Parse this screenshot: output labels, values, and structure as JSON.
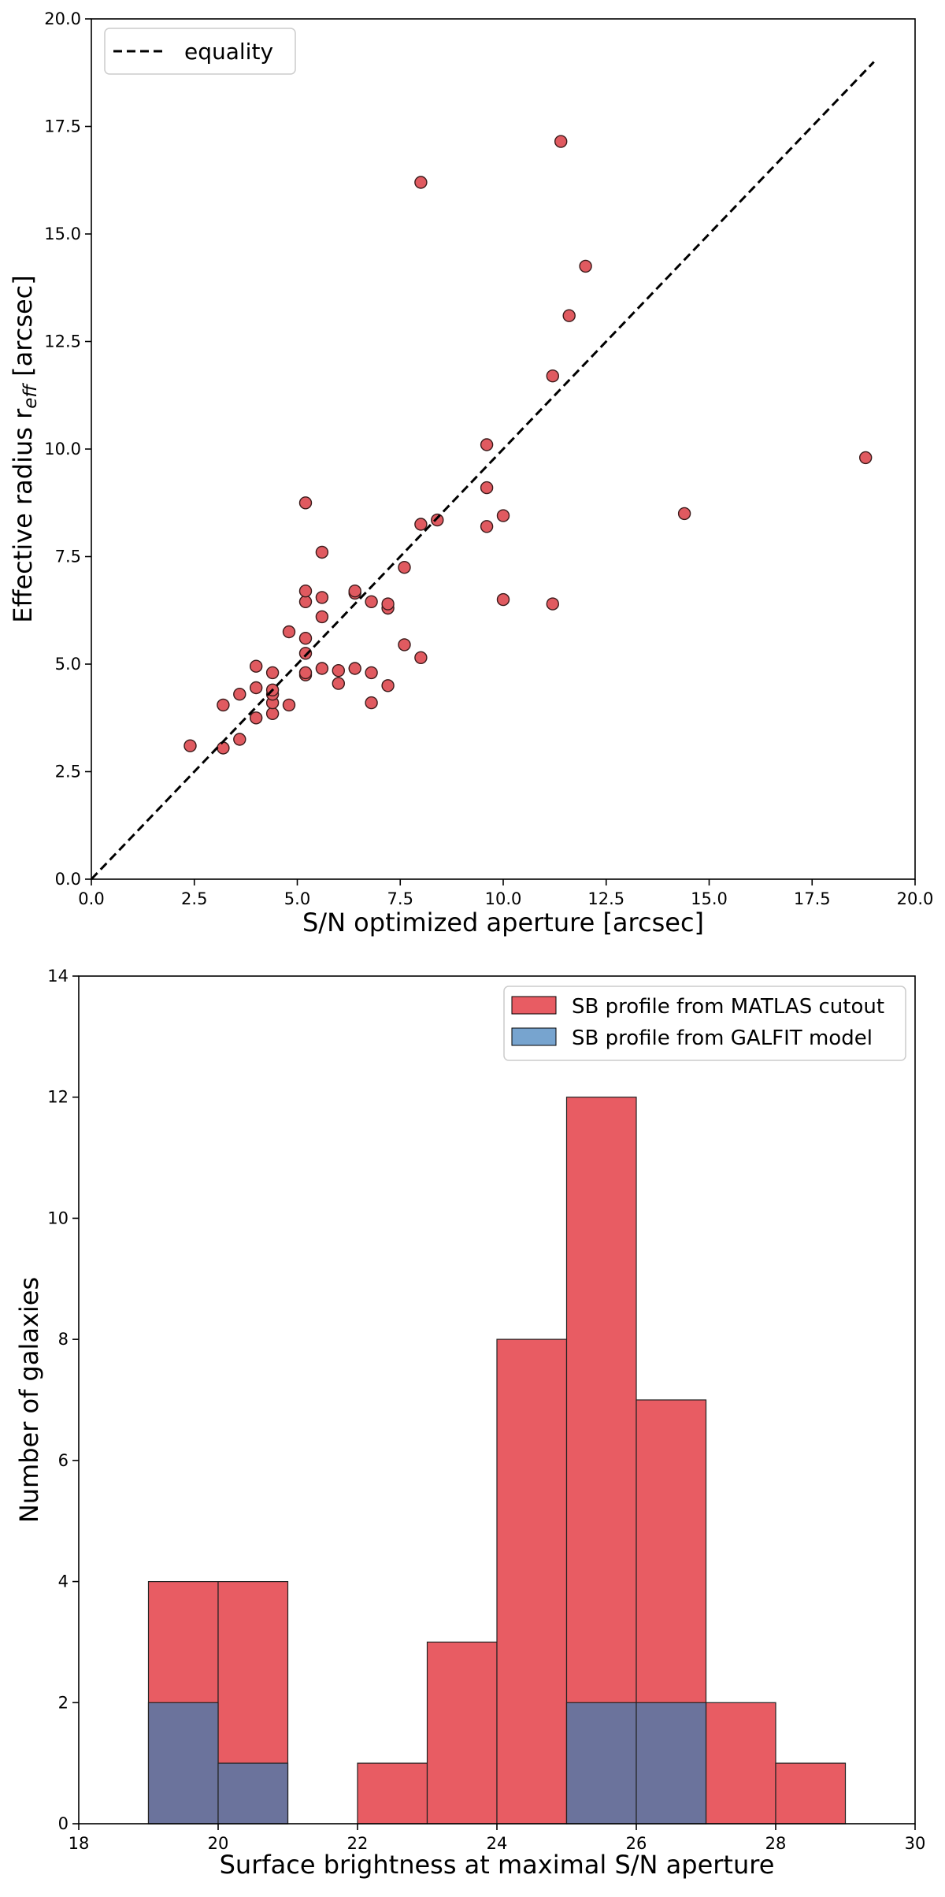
{
  "chart_data": [
    {
      "type": "scatter",
      "xlabel": "S/N optimized aperture [arcsec]",
      "ylabel_main": "Effective radius r",
      "ylabel_sub": "eff",
      "ylabel_tail": " [arcsec]",
      "xlim": [
        0,
        20
      ],
      "ylim": [
        0,
        20
      ],
      "xticks": [
        0,
        2.5,
        5,
        7.5,
        10,
        12.5,
        15,
        17.5,
        20
      ],
      "yticks": [
        0,
        2.5,
        5,
        7.5,
        10,
        12.5,
        15,
        17.5,
        20
      ],
      "xtick_labels": [
        "0.0",
        "2.5",
        "5.0",
        "7.5",
        "10.0",
        "12.5",
        "15.0",
        "17.5",
        "20.0"
      ],
      "ytick_labels": [
        "0.0",
        "2.5",
        "5.0",
        "7.5",
        "10.0",
        "12.5",
        "15.0",
        "17.5",
        "20.0"
      ],
      "marker_color": "#e05a60",
      "line_color": "#000000",
      "legend": {
        "label": "equality",
        "position": "top-left"
      },
      "equality_line": {
        "x": [
          0,
          19
        ],
        "y": [
          0,
          19
        ]
      },
      "points": [
        [
          2.4,
          3.1
        ],
        [
          3.2,
          3.05
        ],
        [
          3.2,
          4.05
        ],
        [
          3.6,
          3.25
        ],
        [
          3.6,
          4.3
        ],
        [
          4.0,
          3.75
        ],
        [
          4.0,
          4.45
        ],
        [
          4.0,
          4.95
        ],
        [
          4.4,
          3.85
        ],
        [
          4.4,
          4.1
        ],
        [
          4.4,
          4.3
        ],
        [
          4.4,
          4.4
        ],
        [
          4.4,
          4.8
        ],
        [
          4.8,
          4.05
        ],
        [
          4.8,
          5.75
        ],
        [
          5.2,
          4.75
        ],
        [
          5.2,
          4.8
        ],
        [
          5.2,
          5.25
        ],
        [
          5.2,
          5.6
        ],
        [
          5.2,
          6.45
        ],
        [
          5.2,
          6.7
        ],
        [
          5.2,
          8.75
        ],
        [
          5.6,
          4.9
        ],
        [
          5.6,
          6.1
        ],
        [
          5.6,
          6.55
        ],
        [
          5.6,
          7.6
        ],
        [
          6.0,
          4.55
        ],
        [
          6.0,
          4.85
        ],
        [
          6.4,
          4.9
        ],
        [
          6.4,
          6.65
        ],
        [
          6.4,
          6.7
        ],
        [
          6.8,
          4.1
        ],
        [
          6.8,
          4.8
        ],
        [
          6.8,
          6.45
        ],
        [
          7.2,
          4.5
        ],
        [
          7.2,
          6.3
        ],
        [
          7.2,
          6.4
        ],
        [
          7.6,
          5.45
        ],
        [
          7.6,
          7.25
        ],
        [
          8.0,
          5.15
        ],
        [
          8.0,
          8.25
        ],
        [
          8.0,
          16.2
        ],
        [
          8.4,
          8.35
        ],
        [
          9.6,
          8.2
        ],
        [
          9.6,
          9.1
        ],
        [
          9.6,
          10.1
        ],
        [
          10.0,
          6.5
        ],
        [
          10.0,
          8.45
        ],
        [
          11.2,
          6.4
        ],
        [
          11.2,
          11.7
        ],
        [
          11.4,
          17.15
        ],
        [
          11.6,
          13.1
        ],
        [
          12.0,
          14.25
        ],
        [
          14.4,
          8.5
        ],
        [
          18.8,
          9.8
        ]
      ]
    },
    {
      "type": "histogram",
      "xlabel": "Surface brightness at maximal S/N aperture",
      "ylabel": "Number of galaxies",
      "xlim": [
        18,
        30
      ],
      "ylim": [
        0,
        14
      ],
      "xticks": [
        18,
        20,
        22,
        24,
        26,
        28,
        30
      ],
      "yticks": [
        0,
        2,
        4,
        6,
        8,
        10,
        12,
        14
      ],
      "xtick_labels": [
        "18",
        "20",
        "22",
        "24",
        "26",
        "28",
        "30"
      ],
      "ytick_labels": [
        "0",
        "2",
        "4",
        "6",
        "8",
        "10",
        "12",
        "14"
      ],
      "bin_edges": [
        19,
        20,
        21,
        22,
        23,
        24,
        25,
        26,
        27,
        28,
        29
      ],
      "series": [
        {
          "name": "SB profile from MATLAS cutout",
          "color": "#e85c63",
          "values": [
            4,
            4,
            0,
            1,
            3,
            8,
            12,
            7,
            2,
            1
          ]
        },
        {
          "name": "SB profile from GALFIT model",
          "color": "#6b739c",
          "legend_color": "#77a4cf",
          "values": [
            2,
            1,
            0,
            0,
            0,
            0,
            2,
            2,
            0,
            0
          ]
        }
      ],
      "legend_position": "top-right"
    }
  ]
}
